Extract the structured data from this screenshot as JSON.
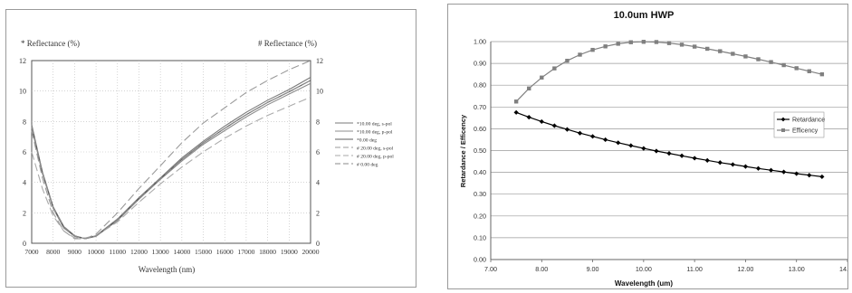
{
  "chart_data": [
    {
      "type": "line",
      "ylabel_left": "* Reflectance (%)",
      "ylabel_right": "# Reflectance (%)",
      "xlabel": "Wavelength (nm)",
      "xlim": [
        7000,
        20000
      ],
      "ylim": [
        0,
        12
      ],
      "grid": true,
      "legend_position": "right",
      "x_ticks": [
        7000,
        8000,
        9000,
        10000,
        11000,
        12000,
        13000,
        14000,
        15000,
        16000,
        17000,
        18000,
        19000,
        20000
      ],
      "y_ticks": [
        0,
        2,
        4,
        6,
        8,
        10,
        12
      ],
      "series": [
        {
          "name": "*10.00 deg, s-pol",
          "color": "#7a7a7a",
          "dash": "",
          "x": [
            7000,
            7500,
            8000,
            8500,
            9000,
            9500,
            10000,
            11000,
            12000,
            13000,
            14000,
            15000,
            16000,
            17000,
            18000,
            19000,
            20000
          ],
          "y": [
            7.8,
            4.7,
            2.4,
            1.1,
            0.5,
            0.3,
            0.5,
            1.6,
            3.0,
            4.3,
            5.6,
            6.7,
            7.7,
            8.6,
            9.4,
            10.1,
            10.9
          ]
        },
        {
          "name": "*10.00 deg, p-pol",
          "color": "#8c8c8c",
          "dash": "",
          "x": [
            7000,
            7500,
            8000,
            8500,
            9000,
            9500,
            10000,
            11000,
            12000,
            13000,
            14000,
            15000,
            16000,
            17000,
            18000,
            19000,
            20000
          ],
          "y": [
            7.6,
            4.6,
            2.3,
            1.0,
            0.45,
            0.3,
            0.45,
            1.5,
            2.9,
            4.2,
            5.4,
            6.5,
            7.4,
            8.3,
            9.1,
            9.8,
            10.5
          ]
        },
        {
          "name": "*0.00 deg",
          "color": "#5e5e5e",
          "dash": "",
          "x": [
            7000,
            7500,
            8000,
            8500,
            9000,
            9500,
            10000,
            11000,
            12000,
            13000,
            14000,
            15000,
            16000,
            17000,
            18000,
            19000,
            20000
          ],
          "y": [
            7.7,
            4.65,
            2.35,
            1.05,
            0.48,
            0.3,
            0.48,
            1.55,
            2.95,
            4.25,
            5.5,
            6.6,
            7.55,
            8.45,
            9.25,
            9.95,
            10.7
          ]
        },
        {
          "name": "# 20.00 deg, s-pol",
          "color": "#9a9a9a",
          "dash": "9,4",
          "x": [
            7000,
            7500,
            8000,
            8500,
            9000,
            9500,
            10000,
            11000,
            12000,
            13000,
            14000,
            15000,
            16000,
            17000,
            18000,
            19000,
            20000
          ],
          "y": [
            7.4,
            4.3,
            2.0,
            0.8,
            0.3,
            0.3,
            0.6,
            2.0,
            3.6,
            5.1,
            6.6,
            7.9,
            8.9,
            9.9,
            10.7,
            11.4,
            12.0
          ]
        },
        {
          "name": "# 20.00 deg, p-pol",
          "color": "#aaaaaa",
          "dash": "9,4",
          "x": [
            7000,
            7500,
            8000,
            8500,
            9000,
            9500,
            10000,
            11000,
            12000,
            13000,
            14000,
            15000,
            16000,
            17000,
            18000,
            19000,
            20000
          ],
          "y": [
            6.0,
            3.6,
            1.8,
            0.8,
            0.35,
            0.35,
            0.5,
            1.4,
            2.7,
            3.9,
            5.0,
            6.0,
            6.9,
            7.7,
            8.4,
            9.0,
            9.6
          ]
        },
        {
          "name": "# 0.00 deg",
          "color": "#8a8a8a",
          "dash": "9,4",
          "x": [
            7000,
            7500,
            8000,
            8500,
            9000,
            9500,
            10000,
            11000,
            12000,
            13000,
            14000,
            15000,
            16000,
            17000,
            18000,
            19000,
            20000
          ],
          "y": [
            7.7,
            4.65,
            2.35,
            1.05,
            0.48,
            0.3,
            0.48,
            1.55,
            2.95,
            4.25,
            5.5,
            6.6,
            7.55,
            8.45,
            9.25,
            9.95,
            10.7
          ]
        }
      ]
    },
    {
      "type": "line",
      "title": "10.0um HWP",
      "xlabel": "Wavelength (um)",
      "ylabel": "Retardance / Efficency",
      "xlim": [
        7.0,
        14.0
      ],
      "ylim": [
        0.0,
        1.0
      ],
      "grid": true,
      "legend_position": "right",
      "x_ticks": [
        "7.00",
        "8.00",
        "9.00",
        "10.00",
        "11.00",
        "12.00",
        "13.00",
        "14.00"
      ],
      "y_ticks": [
        "0.00",
        "0.10",
        "0.20",
        "0.30",
        "0.40",
        "0.50",
        "0.60",
        "0.70",
        "0.80",
        "0.90",
        "1.00"
      ],
      "series": [
        {
          "name": "Retardance",
          "color": "#000000",
          "marker": "diamond",
          "x": [
            7.5,
            7.75,
            8.0,
            8.25,
            8.5,
            8.75,
            9.0,
            9.25,
            9.5,
            9.75,
            10.0,
            10.25,
            10.5,
            10.75,
            11.0,
            11.25,
            11.5,
            11.75,
            12.0,
            12.25,
            12.5,
            12.75,
            13.0,
            13.25,
            13.5
          ],
          "y": [
            0.675,
            0.653,
            0.633,
            0.614,
            0.597,
            0.58,
            0.565,
            0.55,
            0.536,
            0.523,
            0.51,
            0.498,
            0.487,
            0.476,
            0.465,
            0.455,
            0.445,
            0.436,
            0.427,
            0.418,
            0.41,
            0.402,
            0.394,
            0.387,
            0.38
          ]
        },
        {
          "name": "Efficency",
          "color": "#808080",
          "marker": "square",
          "x": [
            7.5,
            7.75,
            8.0,
            8.25,
            8.5,
            8.75,
            9.0,
            9.25,
            9.5,
            9.75,
            10.0,
            10.25,
            10.5,
            10.75,
            11.0,
            11.25,
            11.5,
            11.75,
            12.0,
            12.25,
            12.5,
            12.75,
            13.0,
            13.25,
            13.5
          ],
          "y": [
            0.725,
            0.785,
            0.835,
            0.877,
            0.912,
            0.94,
            0.962,
            0.978,
            0.99,
            0.997,
            0.999,
            0.998,
            0.993,
            0.986,
            0.977,
            0.967,
            0.956,
            0.944,
            0.932,
            0.919,
            0.906,
            0.892,
            0.878,
            0.864,
            0.85
          ]
        }
      ]
    }
  ]
}
